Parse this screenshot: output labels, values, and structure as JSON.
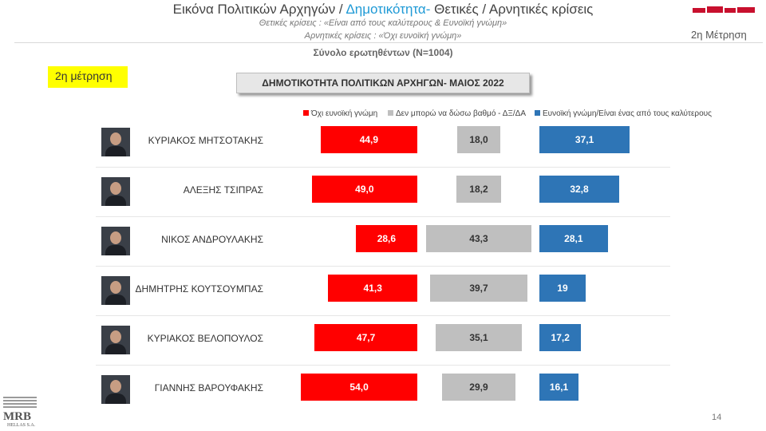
{
  "header": {
    "title_part1": "Εικόνα Πολιτικών Αρχηγών  / ",
    "title_highlight": "Δημοτικότητα-",
    "title_part2": " Θετικές / Αρνητικές κρίσεις",
    "subtitle_positive": "Θετικές κρίσεις : «Είναι από τους καλύτερους &  Ευνοϊκή γνώμη»",
    "subtitle_negative": "Αρνητικές κρίσεις : «Όχι ευνοϊκή γνώμη»",
    "sample": "Σύνολο ερωτηθέντων (N=1004)",
    "measurement": "2η Μέτρηση"
  },
  "badge": "2η μέτρηση",
  "page_number": "14",
  "logo": {
    "name": "MRB",
    "sub": "HELLAS S.A."
  },
  "colors": {
    "negative": "#ff0000",
    "neutral": "#bfbfbf",
    "positive": "#2e75b6",
    "badge": "#ffff00",
    "highlight": "#1f9ad6"
  },
  "chart_data": {
    "type": "bar",
    "title": "ΔΗΜΟΤΙΚΟΤΗΤΑ  ΠΟΛΙΤΙΚΩΝ ΑΡΧΗΓΩΝ- ΜΑΙΟΣ 2022",
    "categories": [
      "ΚΥΡΙΑΚΟΣ ΜΗΤΣΟΤΑΚΗΣ",
      "ΑΛΕΞΗΣ ΤΣΙΠΡΑΣ",
      "ΝΙΚΟΣ ΑΝΔΡΟΥΛΑΚΗΣ",
      "ΔΗΜΗΤΡΗΣ ΚΟΥΤΣΟΥΜΠΑΣ",
      "ΚΥΡΙΑΚΟΣ ΒΕΛΟΠΟΥΛΟΣ",
      "ΓΙΑΝΝΗΣ ΒΑΡΟΥΦΑΚΗΣ"
    ],
    "series": [
      {
        "name": "Όχι ευνοϊκή γνώμη",
        "color": "#ff0000",
        "values": [
          44.9,
          49.0,
          28.6,
          41.3,
          47.7,
          54.0
        ],
        "labels": [
          "44,9",
          "49,0",
          "28,6",
          "41,3",
          "47,7",
          "54,0"
        ]
      },
      {
        "name": "Δεν μπορώ να δώσω βαθμό - ΔΞ/ΔΑ",
        "color": "#bfbfbf",
        "values": [
          18.0,
          18.2,
          43.3,
          39.7,
          35.1,
          29.9
        ],
        "labels": [
          "18,0",
          "18,2",
          "43,3",
          "39,7",
          "35,1",
          "29,9"
        ]
      },
      {
        "name": "Ευνοϊκή γνώμη/Είναι ένας από τους καλύτερους",
        "color": "#2e75b6",
        "values": [
          37.1,
          32.8,
          28.1,
          19,
          17.2,
          16.1
        ],
        "labels": [
          "37,1",
          "32,8",
          "28,1",
          "19",
          "17,2",
          "16,1"
        ]
      }
    ],
    "legend_position": "top"
  }
}
